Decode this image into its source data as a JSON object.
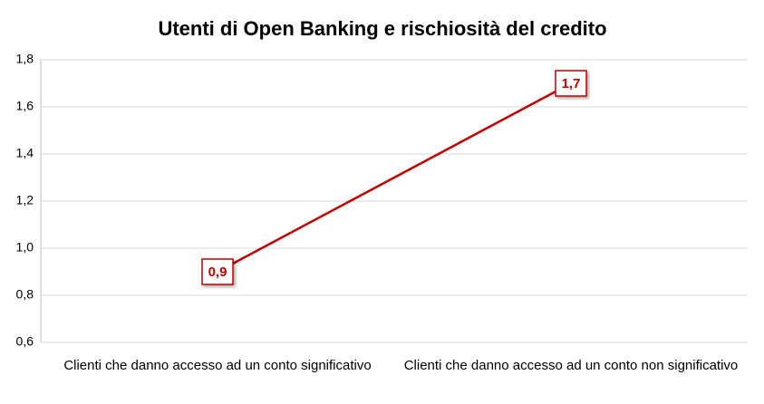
{
  "chart_data": {
    "type": "line",
    "title": "Utenti di Open Banking e rischiosità del credito",
    "categories": [
      "Clienti che danno accesso ad un conto significativo",
      "Clienti che danno accesso ad un conto non significativo"
    ],
    "series": [
      {
        "name": "Utenti di Open Banking",
        "color": "#c00000",
        "values": [
          0.9,
          1.7
        ],
        "value_labels": [
          "0,9",
          "1,7"
        ]
      }
    ],
    "ylim": [
      0.6,
      1.8
    ],
    "yticks": [
      {
        "value": 0.6,
        "label": "0,6"
      },
      {
        "value": 0.8,
        "label": "0,8"
      },
      {
        "value": 1.0,
        "label": "1,0"
      },
      {
        "value": 1.2,
        "label": "1,2"
      },
      {
        "value": 1.4,
        "label": "1,4"
      },
      {
        "value": 1.6,
        "label": "1,6"
      },
      {
        "value": 1.8,
        "label": "1,8"
      }
    ],
    "grid": true
  }
}
